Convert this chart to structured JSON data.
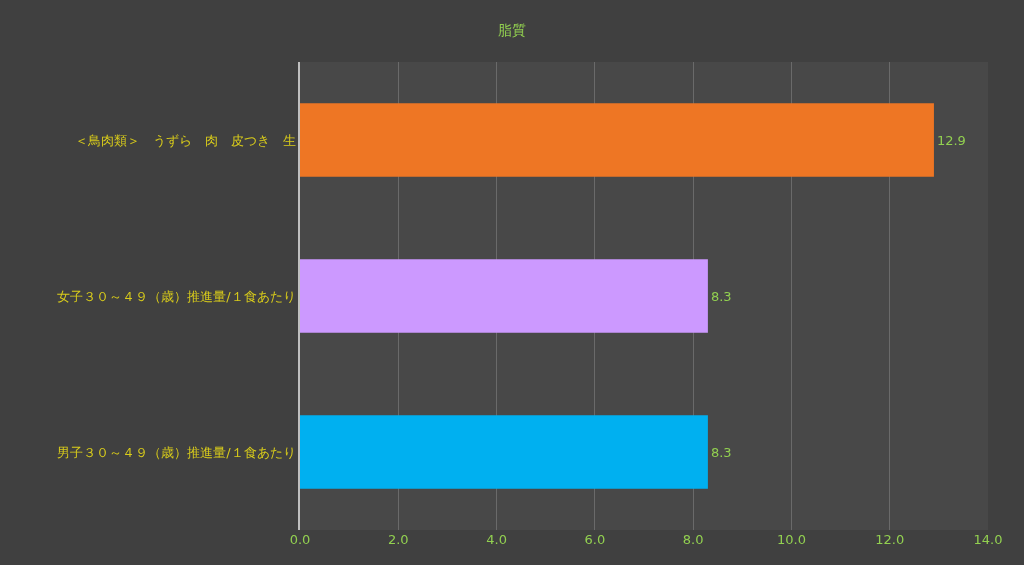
{
  "chart_data": {
    "type": "bar",
    "orientation": "horizontal",
    "title": "脂質",
    "categories": [
      "＜鳥肉類＞　うずら　肉　皮つき　生",
      "女子３０～４９（歳）推進量/１食あたり",
      "男子３０～４９（歳）推進量/１食あたり"
    ],
    "values": [
      12.9,
      8.3,
      8.3
    ],
    "colors": [
      "#ee7624",
      "#cc99ff",
      "#00b0f0"
    ],
    "xlim": [
      0,
      14
    ],
    "xticks": [
      {
        "value": 0,
        "label": "0.0"
      },
      {
        "value": 2,
        "label": "2.0"
      },
      {
        "value": 4,
        "label": "4.0"
      },
      {
        "value": 6,
        "label": "6.0"
      },
      {
        "value": 8,
        "label": "8.0"
      },
      {
        "value": 10,
        "label": "10.0"
      },
      {
        "value": 12,
        "label": "12.0"
      },
      {
        "value": 14,
        "label": "14.0"
      }
    ],
    "grid": "x",
    "data_labels": true
  }
}
